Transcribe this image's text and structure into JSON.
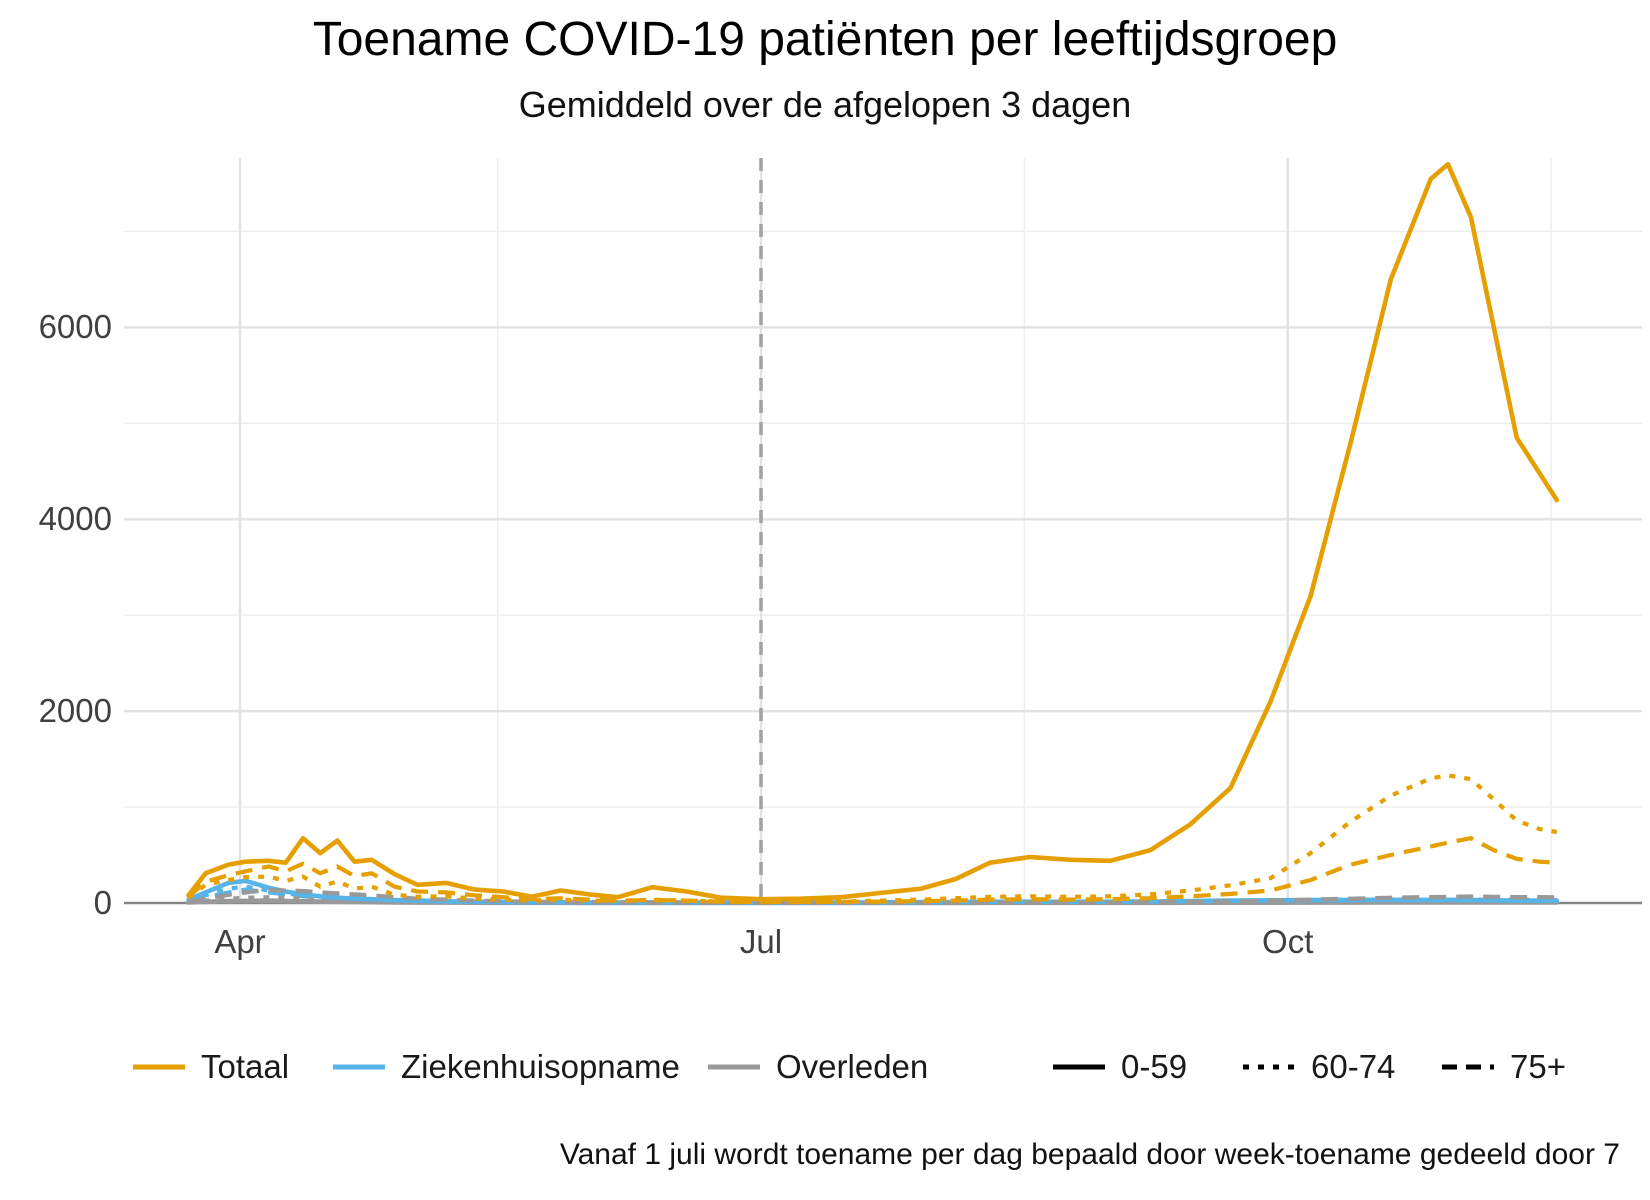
{
  "title": "Toename COVID-19 patiënten per leeftijdsgroep",
  "subtitle": "Gemiddeld over de afgelopen 3 dagen",
  "caption": "Vanaf 1 juli wordt toename per dag bepaald door week-toename gedeeld door 7",
  "colors": {
    "totaal": "#E69F00",
    "ziekenhuisopname": "#56B4E9",
    "overleden": "#999999",
    "axis_text": "#404040",
    "grid_major": "#e2e2e2",
    "grid_minor": "#ededed",
    "axis_line": "#858585",
    "vline": "#a3a3a3",
    "linetype_key": "#000000"
  },
  "legend": {
    "color_items": [
      {
        "label": "Totaal",
        "color": "#E69F00"
      },
      {
        "label": "Ziekenhuisopname",
        "color": "#56B4E9"
      },
      {
        "label": "Overleden",
        "color": "#999999"
      }
    ],
    "linetype_items": [
      {
        "label": "0-59",
        "linetype": "solid"
      },
      {
        "label": "60-74",
        "linetype": "dotted"
      },
      {
        "label": "75+",
        "linetype": "dashed"
      }
    ]
  },
  "x_axis": {
    "ticks": [
      {
        "label": "Apr",
        "date": "2020-04-01"
      },
      {
        "label": "Jul",
        "date": "2020-07-01"
      },
      {
        "label": "Oct",
        "date": "2020-10-01"
      }
    ],
    "minor_dates": [
      "2020-05-16",
      "2020-08-16",
      "2020-11-16"
    ]
  },
  "y_axis": {
    "ticks": [
      {
        "label": "0",
        "value": 0
      },
      {
        "label": "2000",
        "value": 2000
      },
      {
        "label": "4000",
        "value": 4000
      },
      {
        "label": "6000",
        "value": 6000
      }
    ],
    "minor_values": [
      1000,
      3000,
      5000,
      7000
    ]
  },
  "chart_data": {
    "type": "line",
    "title": "Toename COVID-19 patiënten per leeftijdsgroep",
    "subtitle": "Gemiddeld over de afgelopen 3 dagen",
    "xlabel": "",
    "ylabel": "",
    "ylim": [
      0,
      7760
    ],
    "x_range": [
      "2020-03-23",
      "2020-11-17"
    ],
    "grid": true,
    "vline_date": "2020-07-01",
    "legend_position": "bottom",
    "dates": [
      "2020-03-23",
      "2020-03-26",
      "2020-03-30",
      "2020-04-02",
      "2020-04-06",
      "2020-04-09",
      "2020-04-12",
      "2020-04-15",
      "2020-04-18",
      "2020-04-21",
      "2020-04-24",
      "2020-04-28",
      "2020-05-02",
      "2020-05-07",
      "2020-05-12",
      "2020-05-17",
      "2020-05-22",
      "2020-05-27",
      "2020-06-01",
      "2020-06-06",
      "2020-06-12",
      "2020-06-18",
      "2020-06-24",
      "2020-07-01",
      "2020-07-08",
      "2020-07-15",
      "2020-07-22",
      "2020-07-29",
      "2020-08-04",
      "2020-08-10",
      "2020-08-17",
      "2020-08-24",
      "2020-08-31",
      "2020-09-07",
      "2020-09-14",
      "2020-09-21",
      "2020-09-28",
      "2020-10-05",
      "2020-10-12",
      "2020-10-19",
      "2020-10-26",
      "2020-10-29",
      "2020-11-02",
      "2020-11-06",
      "2020-11-10",
      "2020-11-14",
      "2020-11-17"
    ],
    "series": [
      {
        "name": "Ziekenhuisopname 75+",
        "group": "Ziekenhuisopname",
        "age": "75+",
        "linetype": "dashed",
        "color": "#56B4E9",
        "values": [
          20,
          60,
          110,
          140,
          110,
          90,
          70,
          55,
          40,
          30,
          25,
          18,
          14,
          10,
          8,
          6,
          4,
          4,
          3,
          3,
          3,
          3,
          2,
          2,
          2,
          2,
          3,
          4,
          5,
          6,
          7,
          7,
          7,
          9,
          11,
          13,
          15,
          16,
          18,
          19,
          19,
          19,
          18,
          17,
          16,
          15,
          15
        ]
      },
      {
        "name": "Ziekenhuisopname 60-74",
        "group": "Ziekenhuisopname",
        "age": "60-74",
        "linetype": "dotted",
        "color": "#56B4E9",
        "values": [
          25,
          80,
          150,
          170,
          130,
          100,
          80,
          60,
          45,
          35,
          30,
          22,
          18,
          12,
          9,
          7,
          5,
          5,
          4,
          4,
          4,
          4,
          3,
          3,
          3,
          3,
          4,
          5,
          7,
          9,
          10,
          9,
          10,
          12,
          15,
          18,
          20,
          22,
          24,
          25,
          24,
          24,
          23,
          21,
          20,
          19,
          18
        ]
      },
      {
        "name": "Overleden 0-59",
        "group": "Overleden",
        "age": "0-59",
        "linetype": "solid",
        "color": "#999999",
        "values": [
          5,
          12,
          20,
          22,
          25,
          20,
          18,
          15,
          12,
          10,
          8,
          6,
          4,
          4,
          3,
          2,
          2,
          2,
          1,
          1,
          1,
          1,
          1,
          1,
          1,
          1,
          1,
          1,
          1,
          2,
          2,
          2,
          2,
          2,
          3,
          3,
          3,
          4,
          4,
          5,
          5,
          5,
          5,
          5,
          5,
          5,
          5
        ]
      },
      {
        "name": "Overleden 60-74",
        "group": "Overleden",
        "age": "60-74",
        "linetype": "dotted",
        "color": "#999999",
        "values": [
          8,
          25,
          45,
          55,
          60,
          55,
          50,
          45,
          40,
          35,
          30,
          20,
          15,
          12,
          9,
          7,
          5,
          4,
          3,
          3,
          3,
          2,
          2,
          1,
          1,
          1,
          1,
          2,
          2,
          2,
          3,
          3,
          3,
          4,
          5,
          7,
          10,
          15,
          20,
          26,
          30,
          32,
          34,
          35,
          33,
          31,
          30
        ]
      },
      {
        "name": "Ziekenhuisopname 0-59",
        "group": "Ziekenhuisopname",
        "age": "0-59",
        "linetype": "solid",
        "color": "#56B4E9",
        "values": [
          35,
          110,
          210,
          230,
          160,
          120,
          90,
          70,
          55,
          45,
          40,
          30,
          25,
          18,
          14,
          10,
          8,
          8,
          6,
          5,
          6,
          5,
          4,
          4,
          4,
          5,
          6,
          8,
          10,
          12,
          14,
          13,
          14,
          16,
          20,
          25,
          28,
          30,
          32,
          33,
          32,
          32,
          30,
          28,
          26,
          25,
          25
        ]
      },
      {
        "name": "Overleden 75+",
        "group": "Overleden",
        "age": "75+",
        "linetype": "dashed",
        "color": "#999999",
        "values": [
          10,
          45,
          85,
          110,
          135,
          130,
          125,
          110,
          100,
          90,
          80,
          60,
          45,
          35,
          25,
          18,
          12,
          10,
          8,
          6,
          5,
          4,
          3,
          2,
          2,
          2,
          3,
          3,
          3,
          4,
          4,
          4,
          5,
          8,
          12,
          18,
          25,
          35,
          45,
          55,
          62,
          65,
          68,
          65,
          62,
          62,
          60
        ]
      },
      {
        "name": "Totaal 60-74",
        "group": "Totaal",
        "age": "60-74",
        "linetype": "dotted",
        "color": "#E69F00",
        "values": [
          50,
          190,
          240,
          270,
          275,
          230,
          275,
          170,
          225,
          150,
          170,
          85,
          65,
          70,
          45,
          35,
          25,
          35,
          25,
          20,
          35,
          25,
          15,
          10,
          12,
          15,
          25,
          35,
          50,
          65,
          70,
          65,
          70,
          90,
          130,
          185,
          260,
          520,
          850,
          1120,
          1300,
          1330,
          1290,
          1080,
          860,
          770,
          740
        ]
      },
      {
        "name": "Totaal 75+",
        "group": "Totaal",
        "age": "75+",
        "linetype": "dashed",
        "color": "#E69F00",
        "values": [
          65,
          220,
          290,
          330,
          380,
          330,
          410,
          310,
          380,
          280,
          310,
          170,
          120,
          110,
          80,
          60,
          40,
          50,
          35,
          25,
          30,
          25,
          15,
          10,
          10,
          12,
          15,
          20,
          25,
          35,
          40,
          35,
          40,
          50,
          70,
          95,
          130,
          240,
          400,
          500,
          590,
          630,
          675,
          550,
          460,
          430,
          420
        ]
      },
      {
        "name": "Totaal 0-59",
        "group": "Totaal",
        "age": "0-59",
        "linetype": "solid",
        "color": "#E69F00",
        "values": [
          80,
          310,
          400,
          430,
          440,
          420,
          675,
          520,
          650,
          430,
          450,
          300,
          190,
          210,
          140,
          120,
          65,
          130,
          90,
          60,
          165,
          120,
          55,
          40,
          45,
          60,
          105,
          150,
          250,
          420,
          480,
          450,
          440,
          550,
          820,
          1200,
          2100,
          3200,
          4800,
          6500,
          7550,
          7700,
          7150,
          6000,
          4850,
          4480,
          4200
        ]
      }
    ]
  }
}
